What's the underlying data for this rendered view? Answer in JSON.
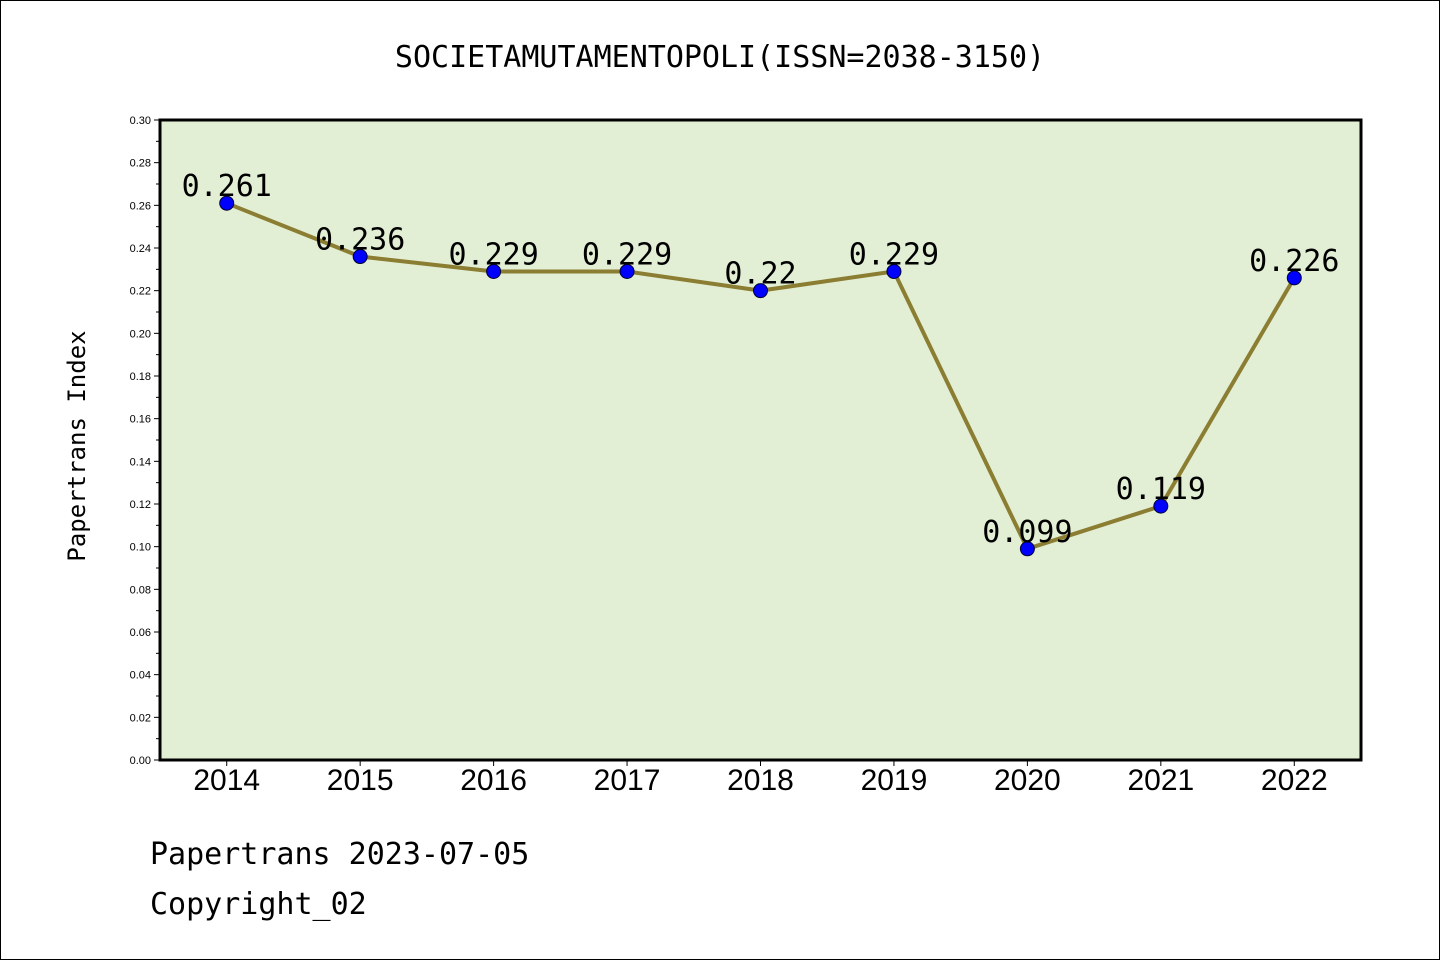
{
  "chart_data": {
    "type": "line",
    "title": "SOCIETAMUTAMENTOPOLI(ISSN=2038-3150)",
    "ylabel": "Papertrans Index",
    "xlabel": "",
    "categories": [
      "2014",
      "2015",
      "2016",
      "2017",
      "2018",
      "2019",
      "2020",
      "2021",
      "2022"
    ],
    "series": [
      {
        "values": [
          0.261,
          0.236,
          0.229,
          0.229,
          0.22,
          0.229,
          0.099,
          0.119,
          0.226
        ],
        "labels": [
          "0.261",
          "0.236",
          "0.229",
          "0.229",
          "0.22",
          "0.229",
          "0.099",
          "0.119",
          "0.226"
        ]
      }
    ],
    "ylim": [
      0,
      0.3
    ],
    "yticks": [
      "0.00",
      "0.02",
      "0.04",
      "0.06",
      "0.08",
      "0.10",
      "0.12",
      "0.14",
      "0.16",
      "0.18",
      "0.20",
      "0.22",
      "0.24",
      "0.26",
      "0.28",
      "0.30"
    ],
    "grid": false,
    "legend": "none",
    "colors": {
      "plot_background": "#e2efd4",
      "line": "#8b7d32",
      "marker": "#0000ff"
    }
  },
  "footer": {
    "line1": "Papertrans 2023-07-05",
    "line2": "Copyright_02"
  }
}
